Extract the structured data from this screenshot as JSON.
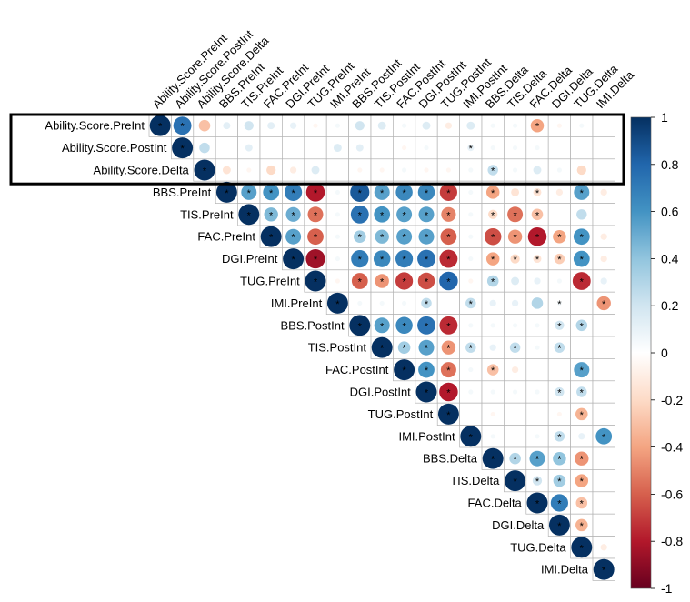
{
  "chart_data": {
    "type": "heatmap",
    "subtype": "upper-triangle correlation matrix (circles)",
    "variables": [
      "Ability.Score.PreInt",
      "Ability.Score.PostInt",
      "Ability.Score.Delta",
      "BBS.PreInt",
      "TIS.PreInt",
      "FAC.PreInt",
      "DGI.PreInt",
      "TUG.PreInt",
      "IMI.PreInt",
      "BBS.PostInt",
      "TIS.PostInt",
      "FAC.PostInt",
      "DGI.PostInt",
      "TUG.PostInt",
      "IMI.PostInt",
      "BBS.Delta",
      "TIS.Delta",
      "FAC.Delta",
      "DGI.Delta",
      "TUG.Delta",
      "IMI.Delta"
    ],
    "matrix": [
      [
        1,
        0.75,
        -0.3,
        0.12,
        0.2,
        0.12,
        0.1,
        -0.05,
        0.05,
        0.2,
        0.15,
        0.05,
        0.15,
        -0.1,
        0.15,
        0.05,
        0.05,
        -0.4,
        -0.05,
        0.05,
        0
      ],
      [
        null,
        1,
        0.25,
        0,
        0.12,
        0,
        0,
        0,
        0.15,
        0.12,
        0,
        -0.05,
        0.05,
        0,
        0.1,
        0.05,
        0.05,
        0.05,
        0,
        0,
        0
      ],
      [
        null,
        null,
        1,
        -0.15,
        -0.05,
        -0.2,
        -0.1,
        0.15,
        0,
        -0.05,
        -0.05,
        0.05,
        -0.05,
        -0.05,
        0.05,
        0.25,
        0.05,
        0.15,
        0.05,
        -0.2,
        0
      ],
      [
        null,
        null,
        null,
        1,
        0.55,
        0.6,
        0.7,
        -0.8,
        0.05,
        0.85,
        0.55,
        0.65,
        0.65,
        -0.7,
        0.05,
        -0.4,
        -0.15,
        -0.15,
        -0.1,
        0.55,
        -0.1
      ],
      [
        null,
        null,
        null,
        null,
        1,
        0.45,
        0.5,
        -0.55,
        0.05,
        0.75,
        0.6,
        0.55,
        0.55,
        -0.5,
        0.05,
        -0.2,
        -0.55,
        -0.3,
        0,
        0.25,
        0
      ],
      [
        null,
        null,
        null,
        null,
        null,
        1,
        0.55,
        -0.6,
        0.05,
        0.35,
        0.45,
        0.55,
        0.55,
        -0.6,
        0.05,
        -0.65,
        -0.45,
        -0.8,
        -0.4,
        0.6,
        -0.1
      ],
      [
        null,
        null,
        null,
        null,
        null,
        null,
        1,
        -0.85,
        0.05,
        0.7,
        0.65,
        0.7,
        0.75,
        -0.75,
        0.05,
        -0.4,
        -0.2,
        -0.15,
        -0.25,
        0.6,
        -0.1
      ],
      [
        null,
        null,
        null,
        null,
        null,
        null,
        null,
        1,
        -0.05,
        -0.6,
        -0.45,
        -0.7,
        -0.65,
        0.8,
        -0.05,
        0.3,
        0.15,
        0.1,
        0.05,
        -0.75,
        0.1
      ],
      [
        null,
        null,
        null,
        null,
        null,
        null,
        null,
        null,
        1,
        0.05,
        0.05,
        0.05,
        0.25,
        0,
        0.25,
        0.1,
        0.1,
        0.3,
        0.05,
        0,
        -0.45
      ],
      [
        null,
        null,
        null,
        null,
        null,
        null,
        null,
        null,
        null,
        1,
        0.55,
        0.65,
        0.75,
        -0.75,
        0.05,
        0.05,
        0.05,
        0.05,
        0.2,
        0.3,
        0
      ],
      [
        null,
        null,
        null,
        null,
        null,
        null,
        null,
        null,
        null,
        null,
        1,
        0.35,
        0.55,
        -0.45,
        0.25,
        0.1,
        0.25,
        0.05,
        0.25,
        0,
        0
      ],
      [
        null,
        null,
        null,
        null,
        null,
        null,
        null,
        null,
        null,
        null,
        null,
        1,
        0.6,
        -0.55,
        0.05,
        -0.3,
        -0.1,
        0,
        0,
        0.55,
        0
      ],
      [
        null,
        null,
        null,
        null,
        null,
        null,
        null,
        null,
        null,
        null,
        null,
        null,
        1,
        -0.8,
        0.05,
        0.05,
        0.05,
        0.05,
        0.2,
        0.25,
        0
      ],
      [
        null,
        null,
        null,
        null,
        null,
        null,
        null,
        null,
        null,
        null,
        null,
        null,
        null,
        1,
        0,
        -0.05,
        0,
        0,
        -0.05,
        -0.35,
        0
      ],
      [
        null,
        null,
        null,
        null,
        null,
        null,
        null,
        null,
        null,
        null,
        null,
        null,
        null,
        null,
        1,
        0.05,
        0,
        0.05,
        0.25,
        0.1,
        0.6
      ],
      [
        null,
        null,
        null,
        null,
        null,
        null,
        null,
        null,
        null,
        null,
        null,
        null,
        null,
        null,
        null,
        1,
        0.3,
        0.55,
        0.4,
        -0.45,
        0
      ],
      [
        null,
        null,
        null,
        null,
        null,
        null,
        null,
        null,
        null,
        null,
        null,
        null,
        null,
        null,
        null,
        null,
        1,
        0.2,
        0.35,
        -0.4,
        0
      ],
      [
        null,
        null,
        null,
        null,
        null,
        null,
        null,
        null,
        null,
        null,
        null,
        null,
        null,
        null,
        null,
        null,
        null,
        1,
        0.7,
        -0.3,
        0
      ],
      [
        null,
        null,
        null,
        null,
        null,
        null,
        null,
        null,
        null,
        null,
        null,
        null,
        null,
        null,
        null,
        null,
        null,
        null,
        1,
        -0.35,
        0
      ],
      [
        null,
        null,
        null,
        null,
        null,
        null,
        null,
        null,
        null,
        null,
        null,
        null,
        null,
        null,
        null,
        null,
        null,
        null,
        null,
        1,
        -0.1
      ],
      [
        null,
        null,
        null,
        null,
        null,
        null,
        null,
        null,
        null,
        null,
        null,
        null,
        null,
        null,
        null,
        null,
        null,
        null,
        null,
        null,
        1
      ]
    ],
    "significance_marker": "*",
    "significant": [
      [
        0,
        1
      ],
      [
        0,
        17
      ],
      [
        1,
        14
      ],
      [
        2,
        15
      ],
      [
        3,
        4
      ],
      [
        3,
        5
      ],
      [
        3,
        6
      ],
      [
        3,
        7
      ],
      [
        3,
        9
      ],
      [
        3,
        10
      ],
      [
        3,
        11
      ],
      [
        3,
        12
      ],
      [
        3,
        13
      ],
      [
        3,
        15
      ],
      [
        3,
        17
      ],
      [
        3,
        19
      ],
      [
        4,
        5
      ],
      [
        4,
        6
      ],
      [
        4,
        7
      ],
      [
        4,
        9
      ],
      [
        4,
        10
      ],
      [
        4,
        11
      ],
      [
        4,
        12
      ],
      [
        4,
        13
      ],
      [
        4,
        15
      ],
      [
        4,
        16
      ],
      [
        4,
        17
      ],
      [
        5,
        6
      ],
      [
        5,
        7
      ],
      [
        5,
        9
      ],
      [
        5,
        10
      ],
      [
        5,
        11
      ],
      [
        5,
        12
      ],
      [
        5,
        13
      ],
      [
        5,
        15
      ],
      [
        5,
        16
      ],
      [
        5,
        17
      ],
      [
        5,
        18
      ],
      [
        5,
        19
      ],
      [
        6,
        7
      ],
      [
        6,
        9
      ],
      [
        6,
        10
      ],
      [
        6,
        11
      ],
      [
        6,
        12
      ],
      [
        6,
        13
      ],
      [
        6,
        15
      ],
      [
        6,
        16
      ],
      [
        6,
        17
      ],
      [
        6,
        18
      ],
      [
        6,
        19
      ],
      [
        7,
        9
      ],
      [
        7,
        10
      ],
      [
        7,
        11
      ],
      [
        7,
        12
      ],
      [
        7,
        13
      ],
      [
        7,
        15
      ],
      [
        7,
        19
      ],
      [
        8,
        12
      ],
      [
        8,
        14
      ],
      [
        8,
        18
      ],
      [
        8,
        20
      ],
      [
        9,
        10
      ],
      [
        9,
        11
      ],
      [
        9,
        12
      ],
      [
        9,
        13
      ],
      [
        9,
        18
      ],
      [
        9,
        19
      ],
      [
        10,
        11
      ],
      [
        10,
        12
      ],
      [
        10,
        13
      ],
      [
        10,
        14
      ],
      [
        10,
        16
      ],
      [
        10,
        18
      ],
      [
        11,
        12
      ],
      [
        11,
        13
      ],
      [
        11,
        15
      ],
      [
        11,
        19
      ],
      [
        12,
        13
      ],
      [
        12,
        18
      ],
      [
        12,
        19
      ],
      [
        13,
        19
      ],
      [
        14,
        18
      ],
      [
        14,
        20
      ],
      [
        15,
        16
      ],
      [
        15,
        17
      ],
      [
        15,
        18
      ],
      [
        15,
        19
      ],
      [
        16,
        17
      ],
      [
        16,
        18
      ],
      [
        16,
        19
      ],
      [
        17,
        18
      ],
      [
        17,
        19
      ],
      [
        18,
        19
      ]
    ],
    "colorbar": {
      "range": [
        -1,
        1
      ],
      "ticks": [
        "1",
        "0.8",
        "0.6",
        "0.4",
        "0.2",
        "0",
        "-0.2",
        "-0.4",
        "-0.6",
        "-0.8",
        "-1"
      ],
      "colors": {
        "neg": "#67001F",
        "mid": "#FFFFFF",
        "pos": "#053061"
      }
    },
    "highlight": {
      "rows": [
        0,
        2
      ],
      "note_color": "#000000"
    }
  }
}
